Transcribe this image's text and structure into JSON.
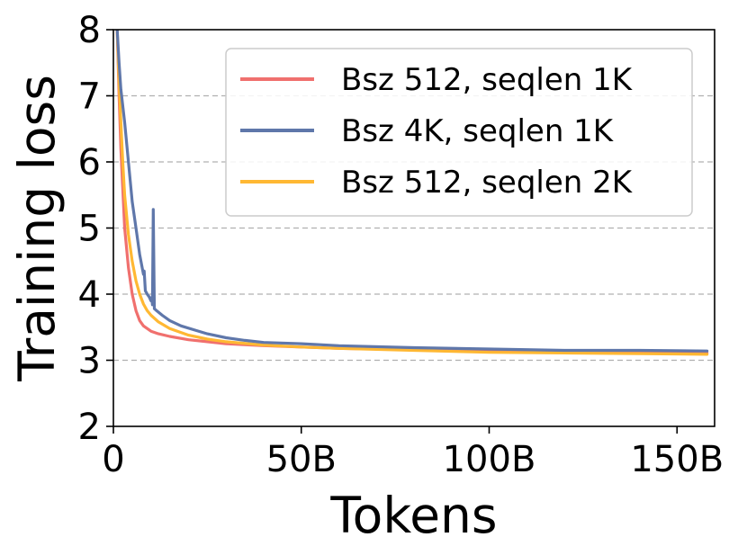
{
  "chart_data": {
    "type": "line",
    "title": "",
    "xlabel": "Tokens",
    "ylabel": "Training loss",
    "xlim": [
      0,
      160
    ],
    "ylim": [
      2,
      8
    ],
    "x_unit": "billions of tokens",
    "xticks": [
      {
        "value": 0,
        "label": "0"
      },
      {
        "value": 50,
        "label": "50B"
      },
      {
        "value": 100,
        "label": "100B"
      },
      {
        "value": 150,
        "label": "150B"
      }
    ],
    "yticks": [
      {
        "value": 2,
        "label": "2"
      },
      {
        "value": 3,
        "label": "3"
      },
      {
        "value": 4,
        "label": "4"
      },
      {
        "value": 5,
        "label": "5"
      },
      {
        "value": 6,
        "label": "6"
      },
      {
        "value": 7,
        "label": "7"
      },
      {
        "value": 8,
        "label": "8"
      }
    ],
    "grid": "horizontal dashed",
    "legend_position": "top-right",
    "series": [
      {
        "name": "Bsz 512, seqlen 1K",
        "color": "#f0706e",
        "points": [
          [
            1,
            8.0
          ],
          [
            1.5,
            7.0
          ],
          [
            2,
            6.2
          ],
          [
            2.5,
            5.6
          ],
          [
            3,
            5.0
          ],
          [
            4,
            4.4
          ],
          [
            5,
            4.0
          ],
          [
            6,
            3.75
          ],
          [
            7,
            3.6
          ],
          [
            8,
            3.52
          ],
          [
            10,
            3.44
          ],
          [
            12,
            3.4
          ],
          [
            15,
            3.36
          ],
          [
            20,
            3.31
          ],
          [
            25,
            3.28
          ],
          [
            30,
            3.25
          ],
          [
            40,
            3.22
          ],
          [
            50,
            3.2
          ],
          [
            60,
            3.18
          ],
          [
            80,
            3.16
          ],
          [
            100,
            3.14
          ],
          [
            120,
            3.13
          ],
          [
            140,
            3.12
          ],
          [
            158,
            3.11
          ]
        ]
      },
      {
        "name": "Bsz 4K, seqlen 1K",
        "color": "#5f77aa",
        "points": [
          [
            1,
            8.0
          ],
          [
            1.5,
            7.5
          ],
          [
            2,
            7.1
          ],
          [
            3,
            6.6
          ],
          [
            4,
            6.0
          ],
          [
            5,
            5.4
          ],
          [
            6,
            5.0
          ],
          [
            7,
            4.6
          ],
          [
            8,
            4.3
          ],
          [
            8.2,
            4.35
          ],
          [
            8.5,
            4.05
          ],
          [
            9,
            4.0
          ],
          [
            9.5,
            3.96
          ],
          [
            10,
            3.9
          ],
          [
            10.2,
            3.95
          ],
          [
            10.4,
            3.84
          ],
          [
            10.6,
            5.28
          ],
          [
            10.9,
            3.78
          ],
          [
            11.5,
            3.75
          ],
          [
            13,
            3.68
          ],
          [
            15,
            3.6
          ],
          [
            18,
            3.52
          ],
          [
            22,
            3.45
          ],
          [
            25,
            3.4
          ],
          [
            30,
            3.34
          ],
          [
            35,
            3.3
          ],
          [
            40,
            3.27
          ],
          [
            50,
            3.25
          ],
          [
            60,
            3.22
          ],
          [
            80,
            3.19
          ],
          [
            100,
            3.17
          ],
          [
            120,
            3.15
          ],
          [
            140,
            3.15
          ],
          [
            158,
            3.14
          ]
        ]
      },
      {
        "name": "Bsz 512, seqlen 2K",
        "color": "#ffb833",
        "points": [
          [
            1,
            8.0
          ],
          [
            1.5,
            7.2
          ],
          [
            2,
            6.6
          ],
          [
            2.5,
            6.0
          ],
          [
            3,
            5.5
          ],
          [
            4,
            4.9
          ],
          [
            5,
            4.5
          ],
          [
            6,
            4.2
          ],
          [
            7,
            4.0
          ],
          [
            8,
            3.85
          ],
          [
            9,
            3.75
          ],
          [
            10,
            3.68
          ],
          [
            12,
            3.58
          ],
          [
            15,
            3.48
          ],
          [
            20,
            3.38
          ],
          [
            25,
            3.32
          ],
          [
            30,
            3.28
          ],
          [
            40,
            3.23
          ],
          [
            50,
            3.2
          ],
          [
            60,
            3.18
          ],
          [
            80,
            3.15
          ],
          [
            100,
            3.12
          ],
          [
            120,
            3.11
          ],
          [
            140,
            3.1
          ],
          [
            158,
            3.09
          ]
        ]
      }
    ]
  }
}
